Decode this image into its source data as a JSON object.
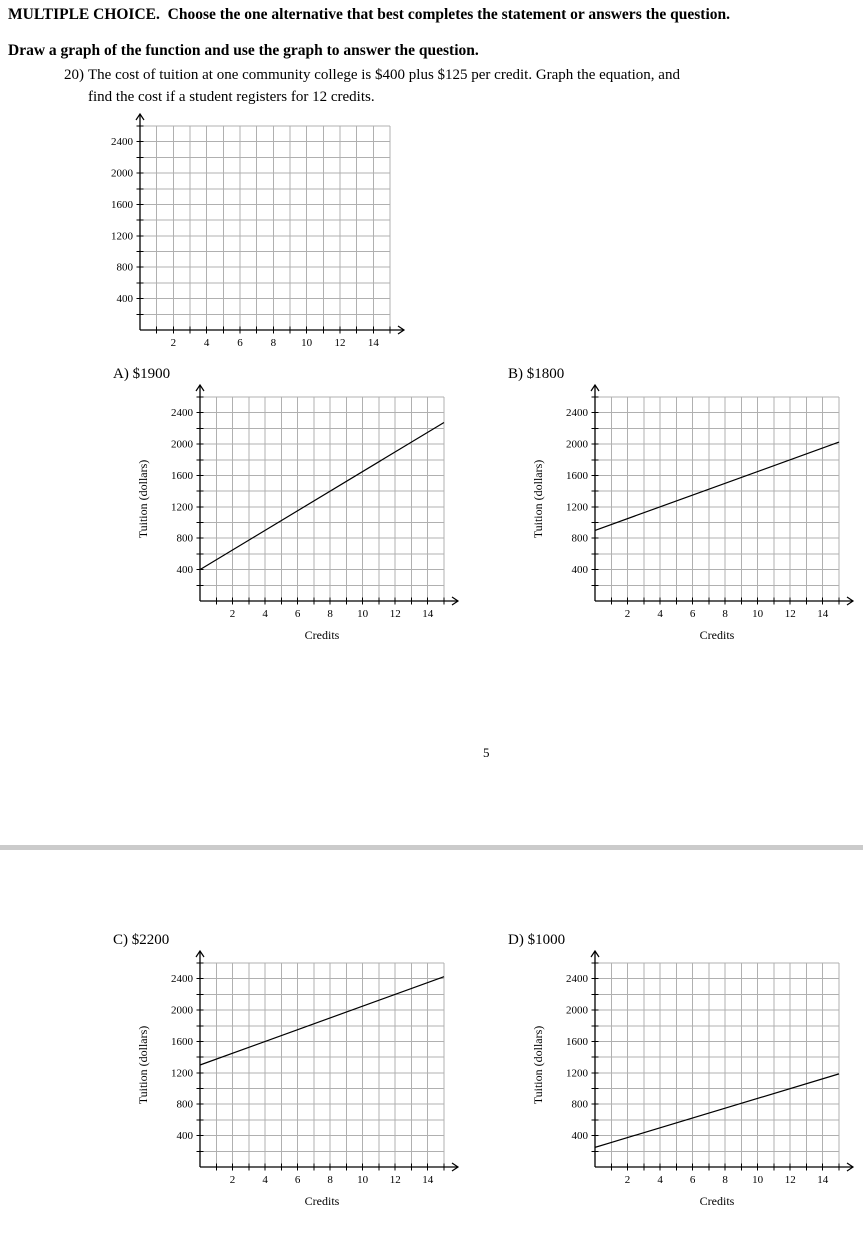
{
  "page": {
    "instruction_header": "MULTIPLE CHOICE.  Choose the one alternative that best completes the statement or answers the question.",
    "directions": "Draw a graph of the function and use the graph to answer the question.",
    "page_number": "5"
  },
  "question": {
    "number": "20)",
    "line1": "The cost of tuition at one community college is $400 plus $125 per credit. Graph the equation, and",
    "line2": "find the cost if a student registers for 12 credits."
  },
  "options": [
    {
      "key": "A",
      "label": "A) $1900"
    },
    {
      "key": "B",
      "label": "B) $1800"
    },
    {
      "key": "C",
      "label": "C) $2200"
    },
    {
      "key": "D",
      "label": "D) $1000"
    }
  ],
  "colors": {
    "grid": "#b0b0b0",
    "axis": "#000000",
    "series": "#000000",
    "text": "#000000",
    "page_divider": "#cbcbcb"
  },
  "chart_data": [
    {
      "id": "question-grid",
      "type": "line",
      "title": "",
      "xlabel": "",
      "ylabel": "",
      "xlim": [
        0,
        15
      ],
      "ylim": [
        0,
        2600
      ],
      "x_grid_step": 1,
      "y_grid_step": 200,
      "xticks": [
        2,
        4,
        6,
        8,
        10,
        12,
        14
      ],
      "yticks": [
        400,
        800,
        1200,
        1600,
        2000,
        2400
      ],
      "grid": true,
      "legend": false,
      "series": []
    },
    {
      "id": "option-a-graph",
      "option": "A",
      "type": "line",
      "title": "",
      "xlabel": "Credits",
      "ylabel": "Tuition (dollars)",
      "xlim": [
        0,
        15
      ],
      "ylim": [
        0,
        2600
      ],
      "x_grid_step": 1,
      "y_grid_step": 200,
      "xticks": [
        2,
        4,
        6,
        8,
        10,
        12,
        14
      ],
      "yticks": [
        400,
        800,
        1200,
        1600,
        2000,
        2400
      ],
      "grid": true,
      "legend": false,
      "series": [
        {
          "name": "tuition-line",
          "points": [
            [
              0,
              400
            ],
            [
              15,
              2275
            ]
          ]
        }
      ]
    },
    {
      "id": "option-b-graph",
      "option": "B",
      "type": "line",
      "title": "",
      "xlabel": "Credits",
      "ylabel": "Tuition (dollars)",
      "xlim": [
        0,
        15
      ],
      "ylim": [
        0,
        2600
      ],
      "x_grid_step": 1,
      "y_grid_step": 200,
      "xticks": [
        2,
        4,
        6,
        8,
        10,
        12,
        14
      ],
      "yticks": [
        400,
        800,
        1200,
        1600,
        2000,
        2400
      ],
      "grid": true,
      "legend": false,
      "series": [
        {
          "name": "tuition-line",
          "points": [
            [
              0,
              900
            ],
            [
              15,
              2025
            ]
          ]
        }
      ]
    },
    {
      "id": "option-c-graph",
      "option": "C",
      "type": "line",
      "title": "",
      "xlabel": "Credits",
      "ylabel": "Tuition (dollars)",
      "xlim": [
        0,
        15
      ],
      "ylim": [
        0,
        2600
      ],
      "x_grid_step": 1,
      "y_grid_step": 200,
      "xticks": [
        2,
        4,
        6,
        8,
        10,
        12,
        14
      ],
      "yticks": [
        400,
        800,
        1200,
        1600,
        2000,
        2400
      ],
      "grid": true,
      "legend": false,
      "series": [
        {
          "name": "tuition-line",
          "points": [
            [
              0,
              1300
            ],
            [
              15,
              2425
            ]
          ]
        }
      ]
    },
    {
      "id": "option-d-graph",
      "option": "D",
      "type": "line",
      "title": "",
      "xlabel": "Credits",
      "ylabel": "Tuition (dollars)",
      "xlim": [
        0,
        15
      ],
      "ylim": [
        0,
        2600
      ],
      "x_grid_step": 1,
      "y_grid_step": 200,
      "xticks": [
        2,
        4,
        6,
        8,
        10,
        12,
        14
      ],
      "yticks": [
        400,
        800,
        1200,
        1600,
        2000,
        2400
      ],
      "grid": true,
      "legend": false,
      "series": [
        {
          "name": "tuition-line",
          "points": [
            [
              0,
              250
            ],
            [
              15,
              1187
            ]
          ]
        }
      ]
    }
  ]
}
